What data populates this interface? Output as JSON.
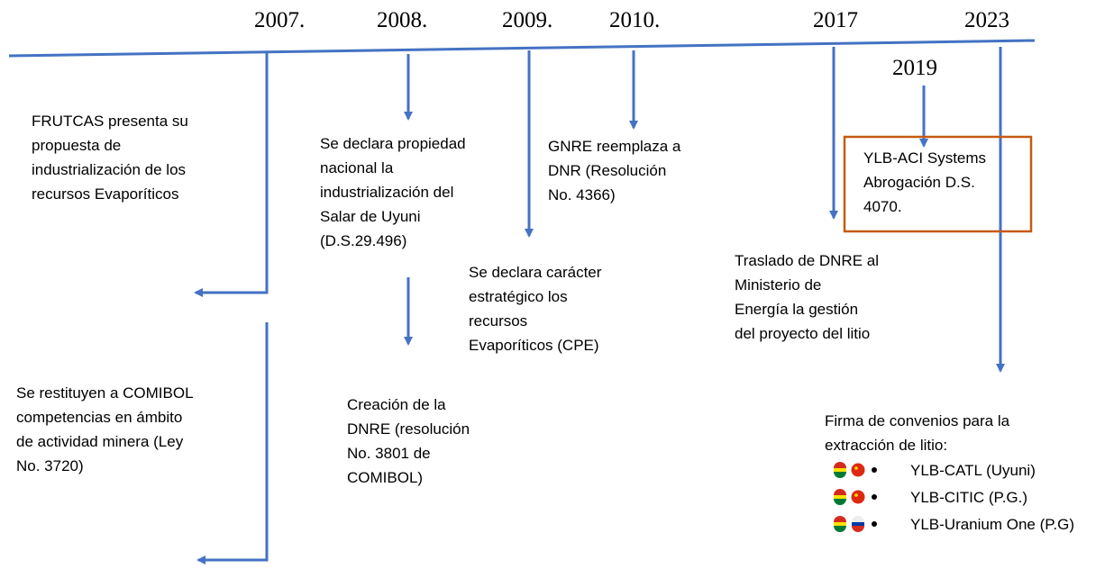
{
  "years": [
    "2007.",
    "2008.",
    "2009.",
    "2010.",
    "2017",
    "2023",
    "2019"
  ],
  "events": [
    {
      "lines": [
        "FRUTCAS presenta su",
        "propuesta de",
        "industrialización de los",
        "recursos Evaporíticos"
      ]
    },
    {
      "lines": [
        "Se declara propiedad",
        "nacional la",
        "industrialización del",
        "Salar de Uyuni",
        "(D.S.29.496)"
      ]
    },
    {
      "lines": [
        "GNRE reemplaza a",
        "DNR (Resolución",
        "No. 4366)"
      ]
    },
    {
      "lines": [
        "YLB-ACI Systems",
        "Abrogación D.S.",
        "4070."
      ]
    },
    {
      "lines": [
        "Traslado de DNRE al",
        "Ministerio de",
        "Energía la gestión",
        "del proyecto del litio"
      ]
    },
    {
      "lines": [
        "Se declara carácter",
        "estratégico los",
        "recursos",
        "Evaporíticos (CPE)"
      ]
    },
    {
      "lines": [
        "Se restituyen a COMIBOL",
        "competencias en ámbito",
        "de actividad minera (Ley",
        "No. 3720)"
      ]
    },
    {
      "lines": [
        "Creación de la",
        "DNRE (resolución",
        "No. 3801 de",
        "COMIBOL)"
      ]
    },
    {
      "lines": [
        "Firma de convenios para la",
        "extracción de litio:"
      ]
    }
  ],
  "agreements": [
    "YLB-CATL (Uyuni)",
    "YLB-CITIC (P.G.)",
    "YLB-Uranium One (P.G)"
  ]
}
